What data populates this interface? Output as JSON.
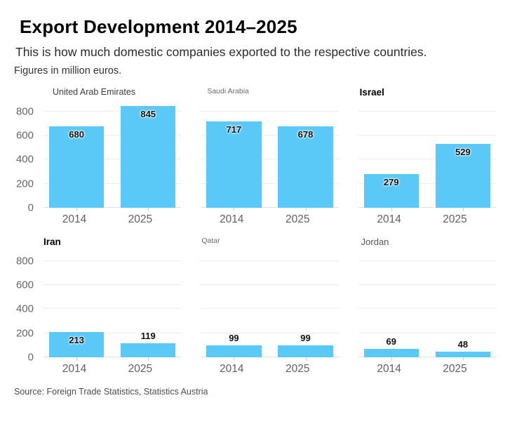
{
  "chart_data": {
    "type": "bar",
    "title": "Export Development 2014–2025",
    "subtitle": "This is how much domestic companies exported to the respective countries.",
    "note": "Figures in million euros.",
    "source": "Source: Foreign Trade Statistics, Statistics Austria",
    "categories": [
      "2014",
      "2025"
    ],
    "y_ticks": [
      "800",
      "600",
      "400",
      "200",
      "0"
    ],
    "ylim": [
      0,
      876
    ],
    "grid": true,
    "legend": "none",
    "bar_color": "#5BC9F7",
    "axis_text_color": "#666666",
    "value_label_color": "#111111",
    "panels": [
      {
        "country": "United Arab Emirates",
        "values": [
          680,
          845
        ]
      },
      {
        "country": "Saudi Arabia",
        "values": [
          717,
          678
        ]
      },
      {
        "country": "Israel",
        "values": [
          279,
          529
        ]
      },
      {
        "country": "Iran",
        "values": [
          213,
          119
        ]
      },
      {
        "country": "Qatar",
        "values": [
          99,
          99
        ]
      },
      {
        "country": "Jordan",
        "values": [
          69,
          48
        ]
      }
    ]
  }
}
